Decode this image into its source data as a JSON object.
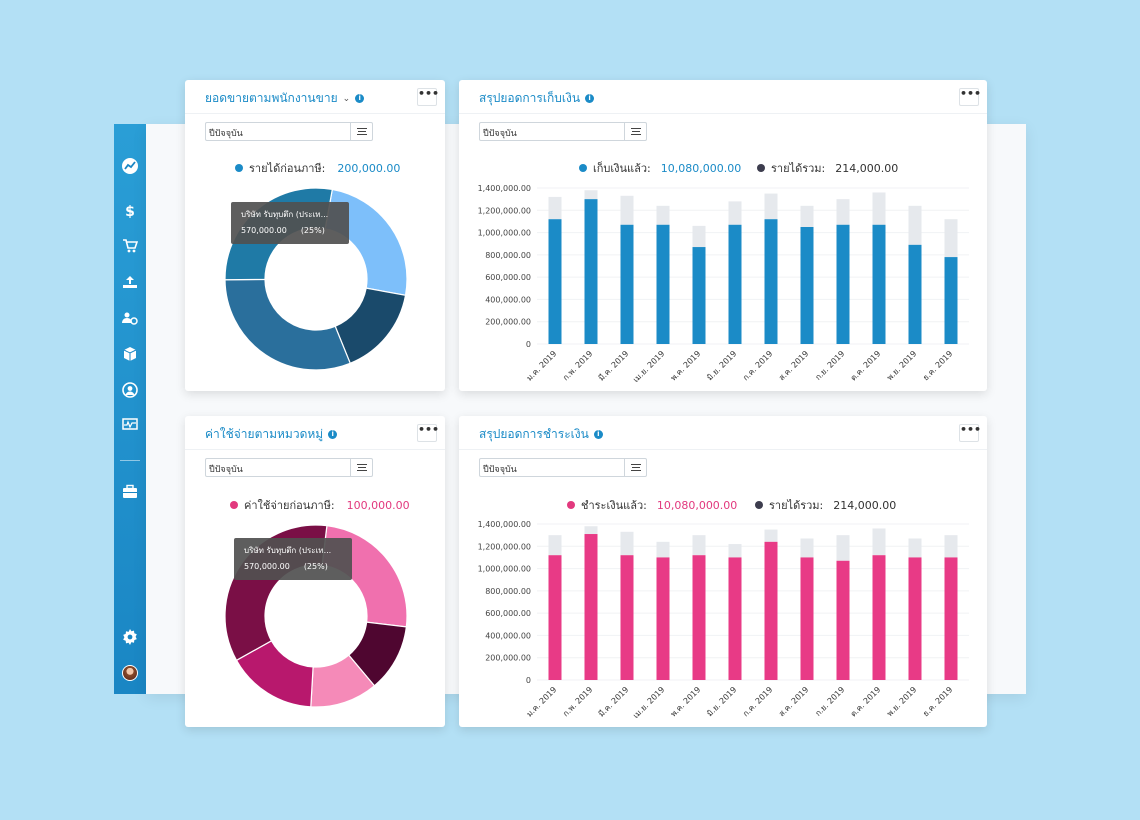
{
  "sidebar": {
    "icons": [
      "trend-icon",
      "dollar-icon",
      "cart-icon",
      "upload-icon",
      "people-settings-icon",
      "box-icon",
      "user-circle-icon",
      "monitor-pulse-icon",
      "briefcase-icon",
      "gear-icon"
    ]
  },
  "range_label": "ปีปัจจุบัน",
  "cards": {
    "sales_by_rep": {
      "title": "ยอดขายตามพนักงานขาย",
      "legend_label": "รายได้ก่อนภาษี:",
      "legend_value": "200,000.00",
      "tooltip_name": "บริษัท รับทุบตึก (ประเท...",
      "tooltip_value": "570,000.00",
      "tooltip_pct": "(25%)",
      "colors": [
        "#7dbffa",
        "#1a4a6b",
        "#2a6f9c",
        "#1f7aa6"
      ]
    },
    "collection_summary": {
      "title": "สรุปยอดการเก็บเงิน",
      "legend1_label": "เก็บเงินแล้ว:",
      "legend1_value": "10,080,000.00",
      "legend2_label": "รายได้รวม:",
      "legend2_value": "214,000.00"
    },
    "expense_by_category": {
      "title": "ค่าใช้จ่ายตามหมวดหมู่",
      "legend_label": "ค่าใช้จ่ายก่อนภาษี:",
      "legend_value": "100,000.00",
      "tooltip_name": "บริษัท รับทุบตึก (ประเท...",
      "tooltip_value": "570,000.00",
      "tooltip_pct": "(25%)",
      "colors": [
        "#f070ae",
        "#4f0630",
        "#f58ab8",
        "#b8186d",
        "#7a0f46"
      ]
    },
    "payment_summary": {
      "title": "สรุปยอดการชำระเงิน",
      "legend1_label": "ชำระเงินแล้ว:",
      "legend1_value": "10,080,000.00",
      "legend2_label": "รายได้รวม:",
      "legend2_value": "214,000.00"
    }
  },
  "chart_data": [
    {
      "type": "pie",
      "title": "ยอดขายตามพนักงานขาย",
      "labels": [
        "บริษัท รับทุบตึก (ประเท...",
        "",
        "",
        ""
      ],
      "values": [
        25,
        16,
        31,
        28
      ]
    },
    {
      "type": "bar",
      "title": "สรุปยอดการเก็บเงิน",
      "categories": [
        "ม.ค. 2019",
        "ก.พ. 2019",
        "มี.ค. 2019",
        "เม.ย. 2019",
        "พ.ค. 2019",
        "มิ.ย. 2019",
        "ก.ค. 2019",
        "ส.ค. 2019",
        "ก.ย. 2019",
        "ต.ค. 2019",
        "พ.ย. 2019",
        "ธ.ค. 2019"
      ],
      "series": [
        {
          "name": "เก็บเงินแล้ว",
          "color": "#1b8bc7",
          "values": [
            1120000,
            1300000,
            1070000,
            1070000,
            870000,
            1070000,
            1120000,
            1050000,
            1070000,
            1070000,
            890000,
            780000
          ]
        },
        {
          "name": "รายได้รวม",
          "color": "#e6e9ed",
          "values": [
            1320000,
            1380000,
            1330000,
            1240000,
            1060000,
            1280000,
            1350000,
            1240000,
            1300000,
            1360000,
            1240000,
            1120000
          ]
        }
      ],
      "yticks": [
        "1,400,000.00",
        "1,200,000.00",
        "1,000,000.00",
        "800,000.00",
        "600,000.00",
        "400,000.00",
        "200,000.00",
        "0"
      ],
      "ylim": [
        0,
        1400000
      ]
    },
    {
      "type": "pie",
      "title": "ค่าใช้จ่ายตามหมวดหมู่",
      "labels": [
        "บริษัท รับทุบตึก (ประเท...",
        "",
        "",
        "",
        ""
      ],
      "values": [
        25,
        12,
        12,
        16,
        35
      ]
    },
    {
      "type": "bar",
      "title": "สรุปยอดการชำระเงิน",
      "categories": [
        "ม.ค. 2019",
        "ก.พ. 2019",
        "มี.ค. 2019",
        "เม.ย. 2019",
        "พ.ค. 2019",
        "มิ.ย. 2019",
        "ก.ค. 2019",
        "ส.ค. 2019",
        "ก.ย. 2019",
        "ต.ค. 2019",
        "พ.ย. 2019",
        "ธ.ค. 2019"
      ],
      "series": [
        {
          "name": "ชำระเงินแล้ว",
          "color": "#e83a86",
          "values": [
            1120000,
            1310000,
            1120000,
            1100000,
            1120000,
            1100000,
            1240000,
            1100000,
            1070000,
            1120000,
            1100000,
            1100000
          ]
        },
        {
          "name": "รายได้รวม",
          "color": "#e6e9ed",
          "values": [
            1300000,
            1380000,
            1330000,
            1240000,
            1300000,
            1220000,
            1350000,
            1270000,
            1300000,
            1360000,
            1270000,
            1300000
          ]
        }
      ],
      "yticks": [
        "1,400,000.00",
        "1,200,000.00",
        "1,000,000.00",
        "800,000.00",
        "600,000.00",
        "400,000.00",
        "200,000.00",
        "0"
      ],
      "ylim": [
        0,
        1400000
      ]
    }
  ]
}
